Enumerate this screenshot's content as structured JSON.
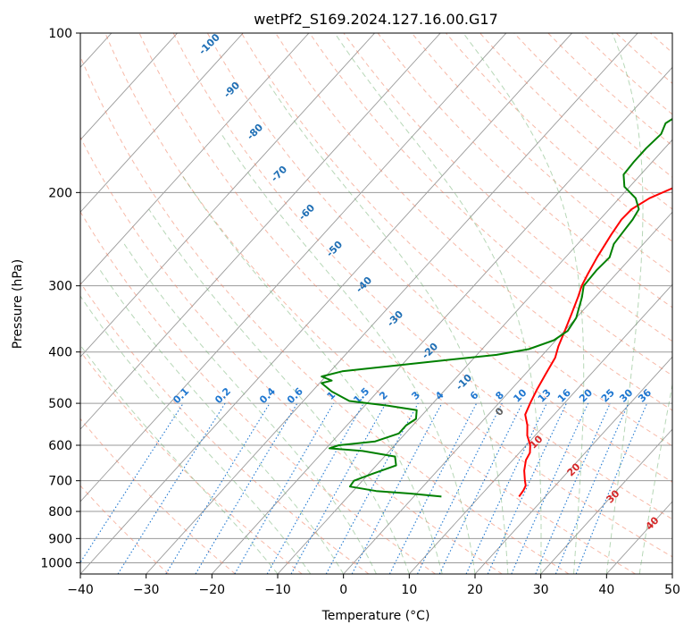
{
  "chart_data": {
    "type": "line",
    "title": "wetPf2_S169.2024.127.16.00.G17",
    "xlabel": "Temperature (°C)",
    "ylabel": "Pressure (hPa)",
    "xlim": [
      -40,
      50
    ],
    "ylim": [
      1050,
      100
    ],
    "y_scale": "log",
    "grid": true,
    "x_ticks": [
      -40,
      -30,
      -20,
      -10,
      0,
      10,
      20,
      30,
      40,
      50
    ],
    "x_tick_labels": [
      "−40",
      "−30",
      "−20",
      "−10",
      "0",
      "10",
      "20",
      "30",
      "40",
      "50"
    ],
    "y_ticks": [
      100,
      200,
      300,
      400,
      500,
      600,
      700,
      800,
      900,
      1000
    ],
    "y_tick_labels": [
      "100",
      "200",
      "300",
      "400",
      "500",
      "600",
      "700",
      "800",
      "900",
      "1000"
    ],
    "series": [
      {
        "role": "temperature",
        "color": "#ff0000",
        "points": [
          [
            16.0,
            750
          ],
          [
            15.8,
            730
          ],
          [
            15.5,
            715
          ],
          [
            14.7,
            700
          ],
          [
            13.2,
            670
          ],
          [
            12.0,
            640
          ],
          [
            11.6,
            620
          ],
          [
            10.6,
            600
          ],
          [
            8.8,
            575
          ],
          [
            7.4,
            550
          ],
          [
            5.6,
            525
          ],
          [
            4.8,
            500
          ],
          [
            3.9,
            470
          ],
          [
            3.1,
            440
          ],
          [
            2.3,
            410
          ],
          [
            1.2,
            390
          ],
          [
            0.3,
            370
          ],
          [
            -1.2,
            340
          ],
          [
            -2.6,
            315
          ],
          [
            -3.6,
            300
          ],
          [
            -4.3,
            285
          ],
          [
            -5.2,
            265
          ],
          [
            -6.2,
            240
          ],
          [
            -6.7,
            225
          ],
          [
            -6.6,
            215
          ],
          [
            -5.4,
            205
          ],
          [
            -2.2,
            192
          ],
          [
            1.8,
            177
          ],
          [
            6.8,
            158
          ],
          [
            10.1,
            145
          ],
          [
            12.9,
            136
          ],
          [
            14.4,
            131
          ],
          [
            15.8,
            126
          ],
          [
            17.1,
            121
          ],
          [
            19.0,
            116
          ],
          [
            20.4,
            112
          ],
          [
            22.3,
            108
          ],
          [
            24.4,
            104
          ],
          [
            25.7,
            100
          ]
        ]
      },
      {
        "role": "dewpoint",
        "color": "#008000",
        "points": [
          [
            4.2,
            750
          ],
          [
            -1.0,
            740
          ],
          [
            -6.5,
            732
          ],
          [
            -11.1,
            718
          ],
          [
            -11.3,
            700
          ],
          [
            -9.5,
            680
          ],
          [
            -7.0,
            655
          ],
          [
            -8.4,
            630
          ],
          [
            -14.1,
            615
          ],
          [
            -19.5,
            608
          ],
          [
            -18.5,
            600
          ],
          [
            -13.5,
            590
          ],
          [
            -11.0,
            570
          ],
          [
            -11.0,
            550
          ],
          [
            -10.4,
            535
          ],
          [
            -11.5,
            515
          ],
          [
            -16.5,
            505
          ],
          [
            -23.0,
            495
          ],
          [
            -27.0,
            475
          ],
          [
            -29.7,
            458
          ],
          [
            -28.5,
            453
          ],
          [
            -30.6,
            445
          ],
          [
            -28.2,
            435
          ],
          [
            -23.5,
            428
          ],
          [
            -14.5,
            415
          ],
          [
            -7.0,
            405
          ],
          [
            -2.9,
            395
          ],
          [
            -0.3,
            380
          ],
          [
            0.5,
            365
          ],
          [
            0.0,
            345
          ],
          [
            -2.0,
            315
          ],
          [
            -3.3,
            300
          ],
          [
            -3.5,
            280
          ],
          [
            -3.3,
            265
          ],
          [
            -4.5,
            250
          ],
          [
            -4.8,
            235
          ],
          [
            -5.0,
            225
          ],
          [
            -5.5,
            215
          ],
          [
            -7.5,
            205
          ],
          [
            -10.8,
            195
          ],
          [
            -12.6,
            185
          ],
          [
            -12.8,
            175
          ],
          [
            -12.8,
            165
          ],
          [
            -12.5,
            155
          ],
          [
            -13.3,
            148
          ],
          [
            -12.5,
            143
          ],
          [
            -8.7,
            137
          ],
          [
            -5.7,
            130
          ],
          [
            -4.5,
            123
          ],
          [
            -4.3,
            117
          ],
          [
            -2.4,
            110
          ],
          [
            -1.0,
            104
          ],
          [
            -0.2,
            100
          ]
        ]
      }
    ],
    "dry_adiabat_labels": [
      "-100",
      "-90",
      "-80",
      "-70",
      "-60",
      "-50",
      "-40",
      "-30",
      "-20",
      "-10",
      "0",
      "10",
      "20",
      "30",
      "40"
    ],
    "mixing_ratio_labels": [
      "0.1",
      "0.2",
      "0.4",
      "0.6",
      "1",
      "1.5",
      "2",
      "3",
      "4",
      "6",
      "8",
      "10",
      "13",
      "16",
      "20",
      "25",
      "30",
      "36"
    ],
    "colors": {
      "temperature": "#ff0000",
      "dewpoint": "#008000",
      "dry_adiabat": "#f08060",
      "moist_adiabat": "#70b070",
      "mixing_ratio": "#1f77d0",
      "isotherm": "#9a9a9a",
      "dry_label_neg": "#1f6fb5",
      "dry_label_pos": "#d62728"
    }
  }
}
